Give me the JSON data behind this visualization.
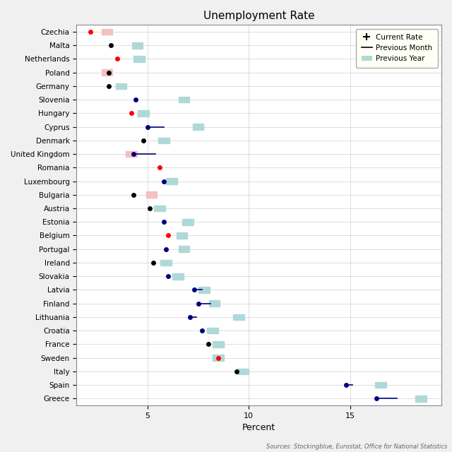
{
  "title": "Unemployment Rate",
  "xlabel": "Percent",
  "source": "Sources: Stockingblue, Eurostat, Office for National Statistics",
  "countries": [
    "Czechia",
    "Malta",
    "Netherlands",
    "Poland",
    "Germany",
    "Slovenia",
    "Hungary",
    "Cyprus",
    "Denmark",
    "United Kingdom",
    "Romania",
    "Luxembourg",
    "Bulgaria",
    "Austria",
    "Estonia",
    "Belgium",
    "Portugal",
    "Ireland",
    "Slovakia",
    "Latvia",
    "Finland",
    "Lithuania",
    "Croatia",
    "France",
    "Sweden",
    "Italy",
    "Spain",
    "Greece"
  ],
  "current_rate": [
    2.2,
    3.2,
    3.5,
    3.1,
    3.1,
    4.4,
    4.2,
    5.0,
    4.8,
    4.3,
    5.6,
    5.8,
    4.3,
    5.1,
    5.8,
    6.0,
    5.9,
    5.3,
    6.0,
    7.3,
    7.5,
    7.1,
    7.7,
    8.0,
    8.5,
    9.4,
    14.8,
    16.3
  ],
  "current_color": [
    "red",
    "black",
    "red",
    "black",
    "black",
    "blue",
    "red",
    "blue",
    "black",
    "blue",
    "red",
    "blue",
    "black",
    "black",
    "blue",
    "red",
    "blue",
    "black",
    "blue",
    "blue",
    "blue",
    "blue",
    "blue",
    "black",
    "red",
    "black",
    "blue",
    "blue"
  ],
  "prev_month_start": [
    null,
    null,
    null,
    null,
    null,
    null,
    null,
    5.8,
    null,
    5.4,
    null,
    null,
    null,
    null,
    null,
    null,
    null,
    null,
    null,
    7.7,
    8.1,
    7.4,
    null,
    null,
    null,
    null,
    15.1,
    17.3
  ],
  "prev_month_end": [
    null,
    null,
    null,
    null,
    null,
    null,
    null,
    5.0,
    null,
    4.3,
    null,
    null,
    null,
    null,
    null,
    null,
    null,
    null,
    null,
    7.3,
    7.5,
    7.1,
    null,
    null,
    null,
    null,
    14.8,
    16.3
  ],
  "prev_year_teal": [
    null,
    4.5,
    4.6,
    null,
    3.7,
    6.8,
    4.8,
    7.5,
    5.8,
    null,
    null,
    6.2,
    null,
    5.6,
    7.0,
    6.7,
    6.8,
    5.9,
    6.5,
    7.8,
    8.3,
    9.5,
    8.2,
    8.5,
    8.5,
    9.7,
    16.5,
    18.5
  ],
  "prev_year_pink": [
    3.0,
    null,
    null,
    3.0,
    null,
    null,
    null,
    null,
    null,
    4.2,
    null,
    null,
    5.2,
    null,
    null,
    null,
    null,
    null,
    null,
    null,
    null,
    null,
    null,
    null,
    null,
    null,
    null,
    null
  ],
  "xlim": [
    1.5,
    19.5
  ],
  "xticks": [
    5,
    10,
    15
  ],
  "background_color": "#f0f0f0",
  "plot_bg": "#ffffff",
  "grid_color": "#d0d0d0",
  "prev_year_teal_color": "#b0d8d8",
  "prev_year_pink_color": "#f5c0c0",
  "navy": "#000080",
  "legend_bg": "#fffff5"
}
